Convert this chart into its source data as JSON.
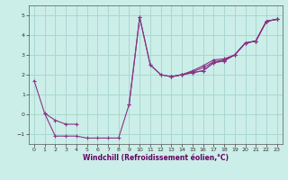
{
  "xlabel": "Windchill (Refroidissement éolien,°C)",
  "background_color": "#cceee8",
  "grid_color": "#a8d8d0",
  "line_color": "#883388",
  "xlim": [
    -0.5,
    23.5
  ],
  "ylim": [
    -1.5,
    5.5
  ],
  "xticks": [
    0,
    1,
    2,
    3,
    4,
    5,
    6,
    7,
    8,
    9,
    10,
    11,
    12,
    13,
    14,
    15,
    16,
    17,
    18,
    19,
    20,
    21,
    22,
    23
  ],
  "yticks": [
    -1,
    0,
    1,
    2,
    3,
    4,
    5
  ],
  "series": [
    [
      1.7,
      0.05,
      -1.1,
      -1.1,
      -1.1,
      -1.2,
      -1.2,
      -1.2,
      -1.2,
      0.5,
      4.9,
      2.5,
      2.0,
      1.9,
      2.0,
      2.1,
      2.2,
      2.6,
      2.7,
      3.0,
      3.6,
      3.7,
      4.7,
      4.8
    ],
    [
      null,
      null,
      null,
      null,
      null,
      null,
      null,
      null,
      null,
      null,
      null,
      null,
      null,
      1.9,
      2.0,
      2.15,
      2.35,
      2.65,
      2.75,
      3.0,
      3.6,
      3.7,
      4.7,
      4.8
    ],
    [
      null,
      null,
      null,
      null,
      null,
      null,
      null,
      null,
      null,
      null,
      null,
      null,
      null,
      1.9,
      2.0,
      2.2,
      2.45,
      2.75,
      2.8,
      3.0,
      3.6,
      3.7,
      4.7,
      4.8
    ],
    [
      null,
      0.05,
      -0.3,
      -0.5,
      -0.5,
      null,
      null,
      null,
      null,
      0.5,
      4.9,
      2.5,
      2.0,
      1.9,
      2.0,
      2.1,
      2.2,
      2.6,
      2.7,
      3.0,
      3.6,
      3.7,
      4.7,
      4.8
    ]
  ]
}
